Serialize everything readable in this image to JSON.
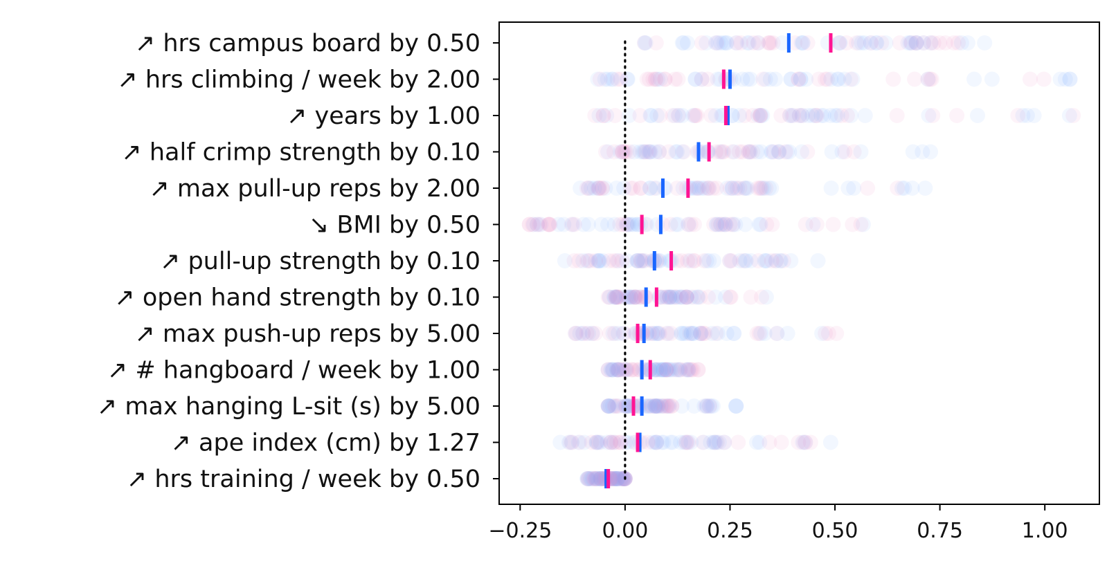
{
  "chart_data": {
    "type": "scatter",
    "title": "",
    "xlabel": "",
    "ylabel": "",
    "xlim": [
      -0.3,
      1.13
    ],
    "x_ticks": [
      -0.25,
      0.0,
      0.25,
      0.5,
      0.75,
      1.0
    ],
    "x_tick_labels": [
      "−0.25",
      "0.00",
      "0.25",
      "0.50",
      "0.75",
      "1.00"
    ],
    "grid": false,
    "reference_line": {
      "x": 0.0,
      "style": "dotted",
      "color": "#000000"
    },
    "colors": {
      "series_a_points": "#7fb3ff",
      "series_b_points": "#f08ac8",
      "series_a_mean": "#1a66ff",
      "series_b_mean": "#ff1493"
    },
    "rows": [
      {
        "label": "↗ hrs campus board by 0.50",
        "range": [
          0.0,
          0.86
        ],
        "mean_a": 0.39,
        "mean_b": 0.49
      },
      {
        "label": "↗ hrs climbing / week by 2.00",
        "range": [
          -0.08,
          1.07
        ],
        "mean_a": 0.25,
        "mean_b": 0.235
      },
      {
        "label": "↗ years by 1.00",
        "range": [
          -0.08,
          1.07
        ],
        "mean_a": 0.245,
        "mean_b": 0.24
      },
      {
        "label": "↗ half crimp strength by 0.10",
        "range": [
          -0.05,
          0.78
        ],
        "mean_a": 0.175,
        "mean_b": 0.2
      },
      {
        "label": "↗ max pull-up reps by 2.00",
        "range": [
          -0.12,
          0.74
        ],
        "mean_a": 0.09,
        "mean_b": 0.15
      },
      {
        "label": "↘ BMI by 0.50",
        "range": [
          -0.24,
          0.61
        ],
        "mean_a": 0.085,
        "mean_b": 0.04
      },
      {
        "label": "↗ pull-up strength by 0.10",
        "range": [
          -0.16,
          0.48
        ],
        "mean_a": 0.07,
        "mean_b": 0.11
      },
      {
        "label": "↗ open hand strength by 0.10",
        "range": [
          -0.04,
          0.35
        ],
        "mean_a": 0.05,
        "mean_b": 0.075
      },
      {
        "label": "↗ max push-up reps by 5.00",
        "range": [
          -0.12,
          0.55
        ],
        "mean_a": 0.045,
        "mean_b": 0.03
      },
      {
        "label": "↗ # hangboard / week by 1.00",
        "range": [
          -0.04,
          0.2
        ],
        "mean_a": 0.04,
        "mean_b": 0.06
      },
      {
        "label": "↗ max hanging L-sit (s) by 5.00",
        "range": [
          -0.04,
          0.28
        ],
        "mean_a": 0.04,
        "mean_b": 0.02
      },
      {
        "label": "↗ ape index (cm) by 1.27",
        "range": [
          -0.16,
          0.52
        ],
        "mean_a": 0.035,
        "mean_b": 0.03
      },
      {
        "label": "↗ hrs training / week by 0.50",
        "range": [
          -0.09,
          0.0
        ],
        "mean_a": -0.045,
        "mean_b": -0.04
      }
    ]
  }
}
